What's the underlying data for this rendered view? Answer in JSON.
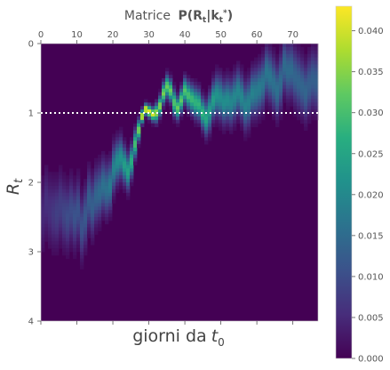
{
  "chart_data": {
    "type": "heatmap",
    "title_prefix": "Matrice",
    "title_math": "P(Rt|kt*)",
    "xlabel_text": "giorni da",
    "xlabel_math": "t0",
    "ylabel": "Rt",
    "x_ticks_top": [
      0,
      10,
      20,
      30,
      40,
      50,
      60,
      70
    ],
    "x_range": [
      0,
      77
    ],
    "y_range": [
      0,
      4
    ],
    "y_inverted": true,
    "y_ticks": [
      0,
      1,
      2,
      3,
      4
    ],
    "reference_line": {
      "y": 1,
      "style": "dotted",
      "color": "#ffffff"
    },
    "colormap": "viridis",
    "color_range": [
      0.0,
      0.043
    ],
    "colorbar_ticks": [
      "0.000",
      "0.005",
      "0.010",
      "0.015",
      "0.020",
      "0.025",
      "0.030",
      "0.035",
      "0.040"
    ],
    "colorbar_tick_values": [
      0.0,
      0.005,
      0.01,
      0.015,
      0.02,
      0.025,
      0.03,
      0.035,
      0.04
    ],
    "rt_peak_by_day": [
      2.45,
      2.3,
      2.4,
      2.45,
      2.45,
      2.35,
      2.45,
      2.5,
      2.4,
      2.5,
      2.4,
      2.65,
      2.5,
      2.25,
      2.35,
      2.2,
      2.15,
      2.05,
      2.1,
      2.05,
      1.8,
      1.7,
      1.65,
      1.75,
      1.85,
      1.7,
      1.45,
      1.25,
      1.05,
      0.95,
      0.98,
      1.02,
      1.0,
      0.9,
      0.72,
      0.62,
      0.68,
      0.85,
      0.93,
      0.82,
      0.68,
      0.75,
      0.8,
      0.85,
      0.88,
      1.0,
      1.08,
      0.98,
      0.82,
      0.75,
      0.78,
      0.85,
      0.82,
      0.85,
      0.78,
      0.7,
      0.78,
      0.9,
      0.85,
      0.72,
      0.7,
      0.65,
      0.58,
      0.42,
      0.48,
      0.58,
      0.68,
      0.55,
      0.32,
      0.4,
      0.38,
      0.48,
      0.55,
      0.62,
      0.7,
      0.6,
      0.52,
      0.55
    ],
    "peak_value_by_day": [
      0.005,
      0.006,
      0.006,
      0.007,
      0.008,
      0.008,
      0.009,
      0.01,
      0.01,
      0.011,
      0.011,
      0.011,
      0.012,
      0.013,
      0.013,
      0.014,
      0.015,
      0.016,
      0.016,
      0.018,
      0.019,
      0.021,
      0.022,
      0.024,
      0.025,
      0.027,
      0.03,
      0.034,
      0.04,
      0.043,
      0.041,
      0.04,
      0.036,
      0.035,
      0.034,
      0.033,
      0.033,
      0.031,
      0.033,
      0.032,
      0.031,
      0.03,
      0.029,
      0.028,
      0.028,
      0.028,
      0.026,
      0.024,
      0.024,
      0.022,
      0.021,
      0.021,
      0.021,
      0.02,
      0.02,
      0.02,
      0.02,
      0.019,
      0.019,
      0.019,
      0.018,
      0.018,
      0.017,
      0.017,
      0.017,
      0.016,
      0.016,
      0.015,
      0.015,
      0.015,
      0.015,
      0.014,
      0.014,
      0.014,
      0.014,
      0.013,
      0.013,
      0.013
    ]
  }
}
